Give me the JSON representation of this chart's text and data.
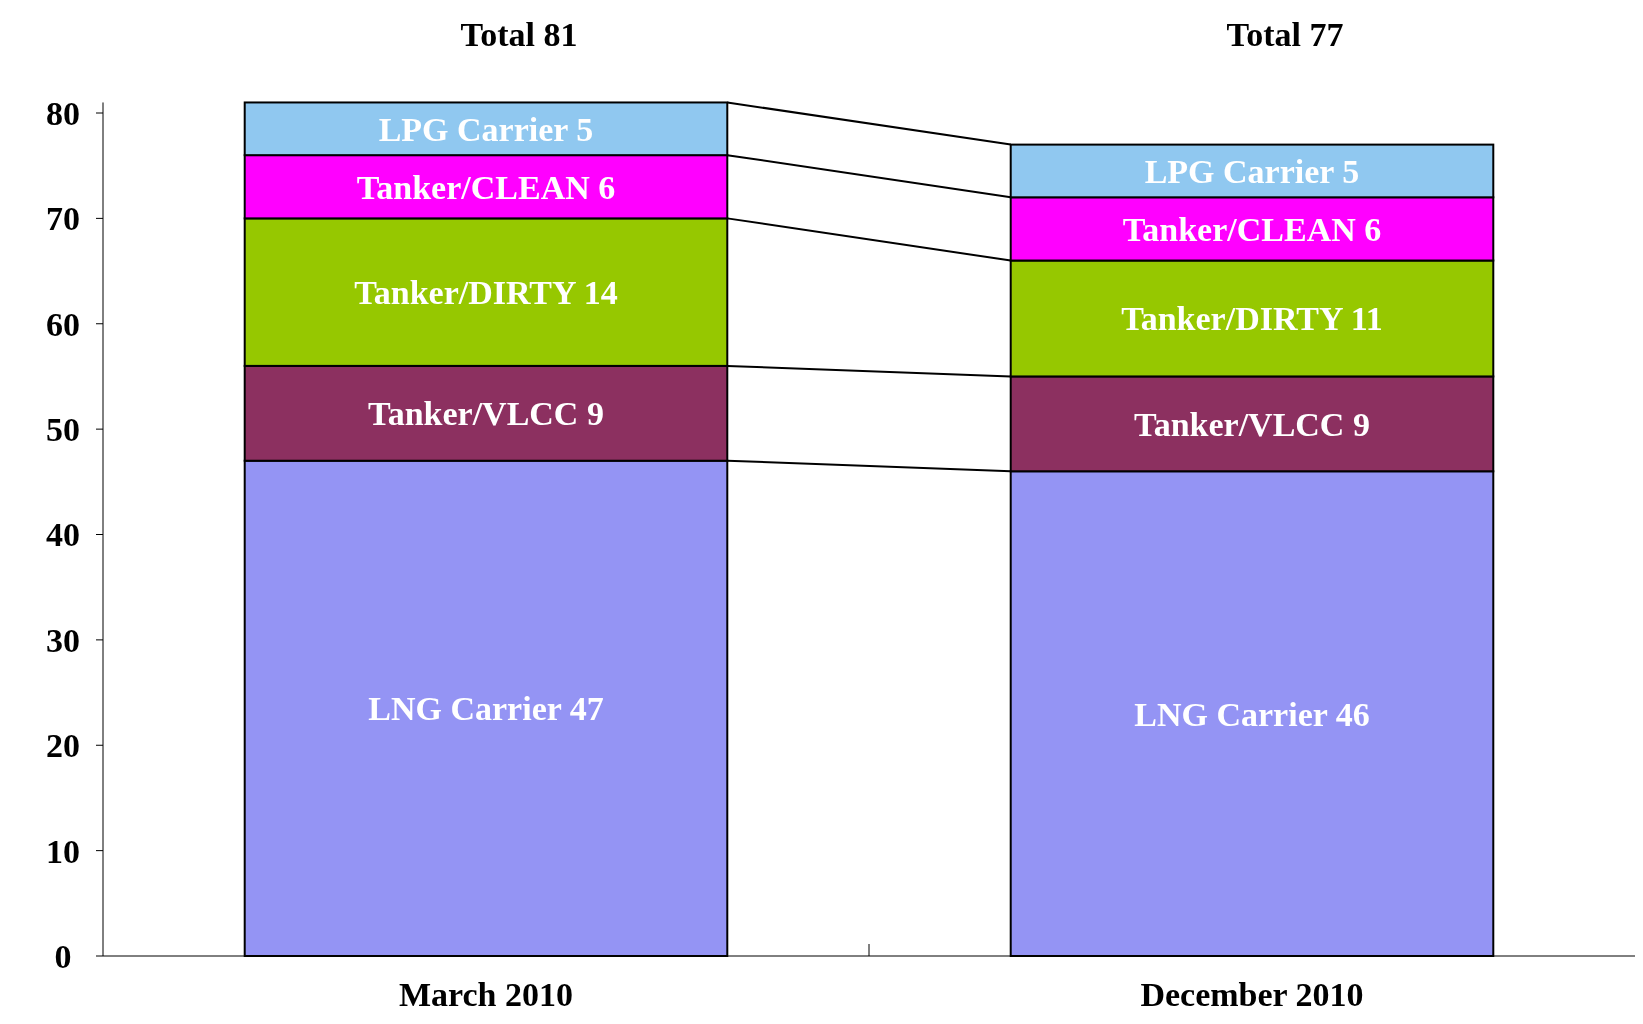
{
  "chart_data": {
    "type": "bar",
    "stacked": true,
    "categories": [
      "March 2010",
      "December 2010"
    ],
    "series": [
      {
        "color": "#9494f4",
        "values": [
          47,
          46
        ],
        "value_labels": [
          "LNG Carrier 47",
          "LNG Carrier 46"
        ]
      },
      {
        "color": "#8c3060",
        "values": [
          9,
          9
        ],
        "value_labels": [
          "Tanker/VLCC 9",
          "Tanker/VLCC 9"
        ]
      },
      {
        "color": "#96c800",
        "values": [
          14,
          11
        ],
        "value_labels": [
          "Tanker/DIRTY 14",
          "Tanker/DIRTY 11"
        ]
      },
      {
        "color": "#ff00ff",
        "values": [
          6,
          6
        ],
        "value_labels": [
          "Tanker/CLEAN 6",
          "Tanker/CLEAN 6"
        ]
      },
      {
        "color": "#90c8f0",
        "values": [
          5,
          5
        ],
        "value_labels": [
          "LPG Carrier 5",
          "LPG Carrier 5"
        ]
      }
    ],
    "ylim": [
      0,
      81
    ],
    "yticks": [
      0,
      10,
      20,
      30,
      40,
      50,
      60,
      70,
      80
    ],
    "grid": false,
    "totals": [
      "Total 81",
      "Total 77"
    ]
  }
}
